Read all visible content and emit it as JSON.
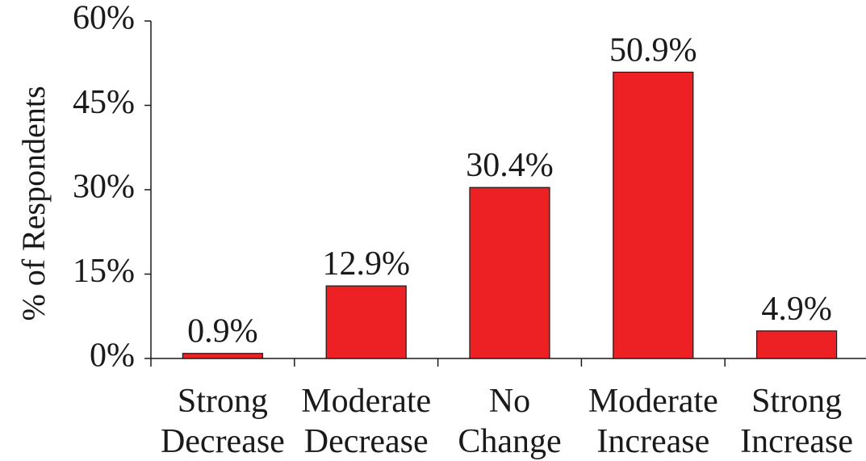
{
  "chart_data": {
    "type": "bar",
    "categories": [
      [
        "Strong",
        "Decrease"
      ],
      [
        "Moderate",
        "Decrease"
      ],
      [
        "No",
        "Change"
      ],
      [
        "Moderate",
        "Increase"
      ],
      [
        "Strong",
        "Increase"
      ]
    ],
    "values": [
      0.9,
      12.9,
      30.4,
      50.9,
      4.9
    ],
    "data_labels": [
      "0.9%",
      "12.9%",
      "30.4%",
      "50.9%",
      "4.9%"
    ],
    "title": "",
    "xlabel": "",
    "ylabel": "% of Respondents",
    "ylim": [
      0,
      60
    ],
    "yticks": [
      0,
      15,
      30,
      45,
      60
    ],
    "ytick_labels": [
      "0%",
      "15%",
      "30%",
      "45%",
      "60%"
    ],
    "grid": false,
    "legend": "none",
    "bar_color": "#ed2124",
    "bar_edge_color": "#1a1a1a",
    "axis_color": "#1a1a1a"
  }
}
